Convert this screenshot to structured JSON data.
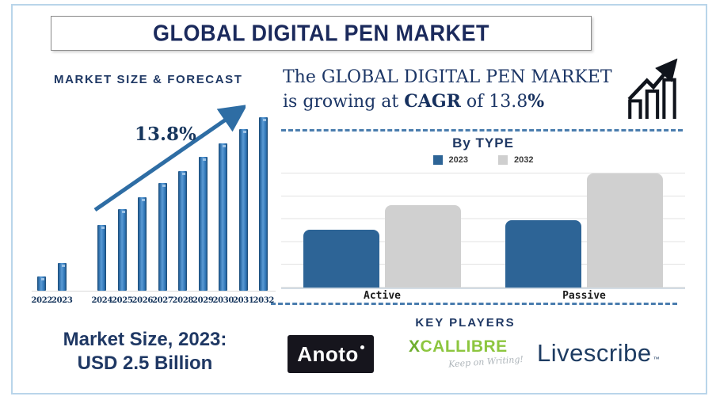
{
  "header": {
    "title": "GLOBAL DIGITAL PEN MARKET"
  },
  "forecast": {
    "title": "MARKET SIZE & FORECAST",
    "cagr_label": "13.8%"
  },
  "statement": {
    "line1": "The GLOBAL DIGITAL PEN MARKET",
    "line2_pre": "is growing at ",
    "line2_bold1": "CAGR",
    "line2_mid": " of 13.8",
    "line2_bold2": "%"
  },
  "market_size": {
    "line1": "Market Size, 2023:",
    "line2": "USD 2.5 Billion"
  },
  "by_type": {
    "title": "By TYPE"
  },
  "key_players": {
    "title": "KEY PLAYERS",
    "logos": [
      {
        "name": "Anoto"
      },
      {
        "name": "XCALLIBRE",
        "tagline": "Keep on Writing!"
      },
      {
        "name": "Livescribe",
        "mark": "™"
      }
    ]
  },
  "icons": {
    "growth_icon": "growth-chart-icon (three outlined bars with rising zigzag arrow)",
    "trend_arrow": "diagonal up-right trend arrow over forecast bars"
  },
  "colors": {
    "navy_text": "#1f3864",
    "title_navy": "#1b2a5c",
    "forecast_bar_blue": "#2e75b6",
    "forecast_bar_edge": "#1b4770",
    "bytype_blue": "#2d6496",
    "bytype_gray": "#d0d0d0",
    "dash_blue": "#4a7dae",
    "frame_blue": "#b9d5ea",
    "xcallibre_green": "#8dc63f",
    "anoto_bg": "#16151d",
    "livescribe_navy": "#1e3c62"
  },
  "chart_data": [
    {
      "type": "bar",
      "title": "MARKET SIZE & FORECAST",
      "x": [
        "2022",
        "2023",
        "2024",
        "2025",
        "2026",
        "2027",
        "2028",
        "2029",
        "2030",
        "2031",
        "2032"
      ],
      "values_relative_pct": [
        8,
        16,
        38,
        47,
        54,
        62,
        69,
        77,
        85,
        93,
        100
      ],
      "xlabel": "",
      "ylabel": "",
      "y_axis_shown": false,
      "annotation": "13.8% (CAGR) with upward trend arrow",
      "note": "No numeric y-axis shown; values are bar heights relative to tallest bar (2032 = 100). Callout states market size 2023 = USD 2.5 Billion, CAGR 13.8%. Visual gap between 2023 and 2024 bars.",
      "bar_color": "#2e75b6"
    },
    {
      "type": "grouped-bar",
      "title": "By TYPE",
      "categories": [
        "Active",
        "Passive"
      ],
      "series": [
        {
          "name": "2023",
          "color": "#2d6496",
          "values_relative_pct": [
            51,
            59
          ]
        },
        {
          "name": "2032",
          "color": "#d0d0d0",
          "values_relative_pct": [
            72,
            100
          ]
        }
      ],
      "legend_position": "top",
      "grid": true,
      "y_axis_shown": false,
      "note": "No numeric axis shown; values are bar heights relative to tallest bar (Passive 2032 = 100)."
    }
  ]
}
